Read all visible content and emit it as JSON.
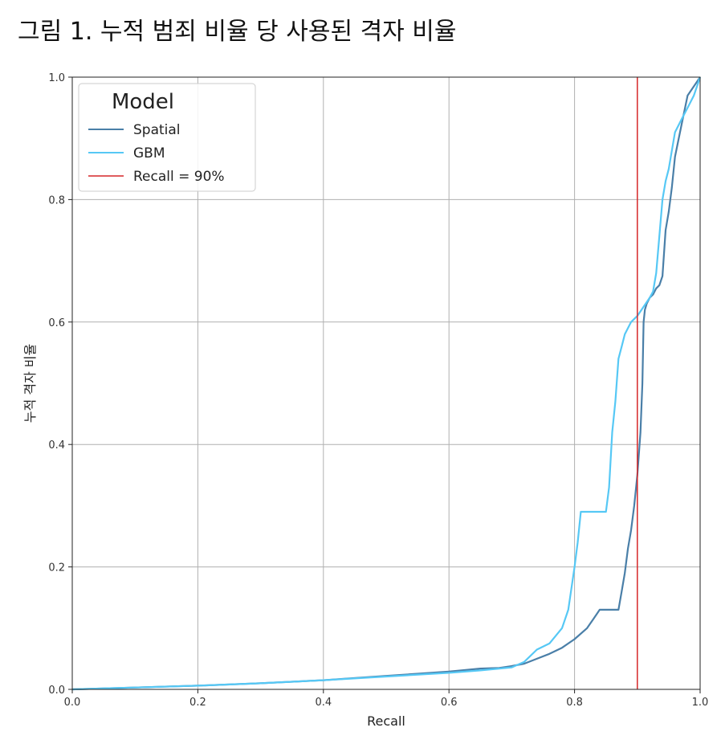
{
  "figure_title": "그림 1. 누적 범죄 비율 당 사용된 격자 비율",
  "chart_data": {
    "type": "line",
    "xlabel": "Recall",
    "ylabel": "누적 격자 비율",
    "xlim": [
      0.0,
      1.0
    ],
    "ylim": [
      0.0,
      1.0
    ],
    "xticks": [
      "0.0",
      "0.2",
      "0.4",
      "0.6",
      "0.8",
      "1.0"
    ],
    "yticks": [
      "0.0",
      "0.2",
      "0.4",
      "0.6",
      "0.8",
      "1.0"
    ],
    "grid": true,
    "legend": {
      "title": "Model",
      "placement": "top-left"
    },
    "series": [
      {
        "name": "Spatial",
        "color": "#4a7fa8",
        "x": [
          0.0,
          0.1,
          0.2,
          0.3,
          0.4,
          0.5,
          0.6,
          0.65,
          0.68,
          0.7,
          0.72,
          0.74,
          0.76,
          0.78,
          0.8,
          0.82,
          0.83,
          0.84,
          0.85,
          0.86,
          0.87,
          0.875,
          0.88,
          0.885,
          0.89,
          0.895,
          0.9,
          0.905,
          0.908,
          0.91,
          0.912,
          0.915,
          0.92,
          0.925,
          0.93,
          0.935,
          0.94,
          0.945,
          0.95,
          0.955,
          0.96,
          0.97,
          0.98,
          1.0
        ],
        "y": [
          0.0,
          0.003,
          0.006,
          0.01,
          0.015,
          0.022,
          0.029,
          0.034,
          0.035,
          0.038,
          0.042,
          0.05,
          0.058,
          0.068,
          0.082,
          0.1,
          0.115,
          0.13,
          0.13,
          0.13,
          0.13,
          0.16,
          0.19,
          0.23,
          0.26,
          0.3,
          0.35,
          0.42,
          0.5,
          0.6,
          0.62,
          0.63,
          0.64,
          0.645,
          0.655,
          0.66,
          0.675,
          0.75,
          0.78,
          0.82,
          0.87,
          0.92,
          0.97,
          1.0
        ]
      },
      {
        "name": "GBM",
        "color": "#56c8f5",
        "x": [
          0.0,
          0.1,
          0.2,
          0.3,
          0.4,
          0.5,
          0.6,
          0.65,
          0.7,
          0.72,
          0.74,
          0.76,
          0.78,
          0.79,
          0.8,
          0.805,
          0.81,
          0.83,
          0.85,
          0.855,
          0.86,
          0.865,
          0.87,
          0.875,
          0.88,
          0.89,
          0.9,
          0.91,
          0.92,
          0.925,
          0.93,
          0.935,
          0.94,
          0.945,
          0.95,
          0.96,
          0.97,
          0.98,
          0.99,
          1.0
        ],
        "y": [
          0.0,
          0.003,
          0.006,
          0.01,
          0.015,
          0.021,
          0.027,
          0.031,
          0.036,
          0.045,
          0.065,
          0.075,
          0.1,
          0.13,
          0.2,
          0.24,
          0.29,
          0.29,
          0.29,
          0.33,
          0.42,
          0.47,
          0.54,
          0.56,
          0.58,
          0.6,
          0.61,
          0.625,
          0.64,
          0.65,
          0.68,
          0.74,
          0.8,
          0.83,
          0.85,
          0.91,
          0.93,
          0.95,
          0.97,
          1.0
        ]
      }
    ],
    "vlines": [
      {
        "name": "Recall = 90%",
        "x": 0.9,
        "color": "#d62728"
      }
    ]
  }
}
